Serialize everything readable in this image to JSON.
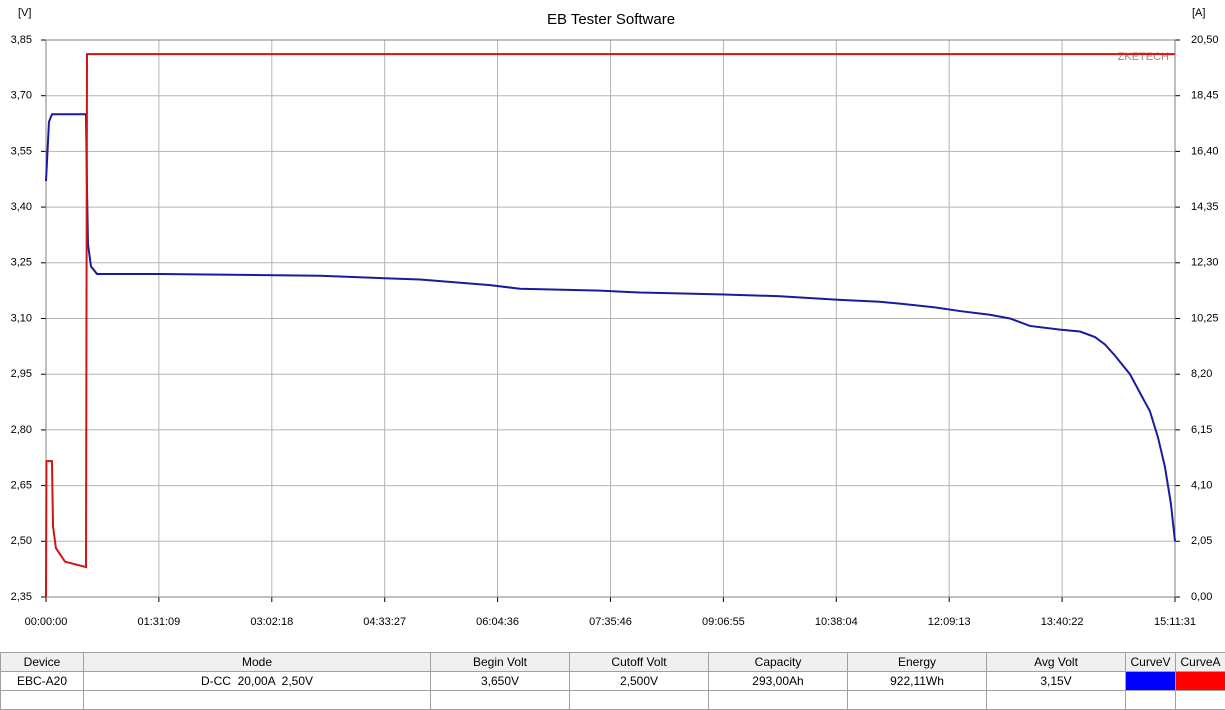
{
  "chart_data": {
    "type": "line",
    "title": "EB Tester Software",
    "y_label": "[V]",
    "y2_label": "[A]",
    "watermark": "ZKETECH",
    "grid": true,
    "xlim": [
      0,
      54691
    ],
    "xticks": [
      {
        "value": 0,
        "label": "00:00:00"
      },
      {
        "value": 5469,
        "label": "01:31:09"
      },
      {
        "value": 10938,
        "label": "03:02:18"
      },
      {
        "value": 16407,
        "label": "04:33:27"
      },
      {
        "value": 21876,
        "label": "06:04:36"
      },
      {
        "value": 27346,
        "label": "07:35:46"
      },
      {
        "value": 32815,
        "label": "09:06:55"
      },
      {
        "value": 38284,
        "label": "10:38:04"
      },
      {
        "value": 43753,
        "label": "12:09:13"
      },
      {
        "value": 49222,
        "label": "13:40:22"
      },
      {
        "value": 54691,
        "label": "15:11:31"
      }
    ],
    "ylim": [
      2.35,
      3.85
    ],
    "yticks": [
      {
        "value": 2.35,
        "label": "2,35"
      },
      {
        "value": 2.5,
        "label": "2,50"
      },
      {
        "value": 2.65,
        "label": "2,65"
      },
      {
        "value": 2.8,
        "label": "2,80"
      },
      {
        "value": 2.95,
        "label": "2,95"
      },
      {
        "value": 3.1,
        "label": "3,10"
      },
      {
        "value": 3.25,
        "label": "3,25"
      },
      {
        "value": 3.4,
        "label": "3,40"
      },
      {
        "value": 3.55,
        "label": "3,55"
      },
      {
        "value": 3.7,
        "label": "3,70"
      },
      {
        "value": 3.85,
        "label": "3,85"
      }
    ],
    "y2lim": [
      0,
      20.5
    ],
    "y2ticks": [
      {
        "value": 0,
        "label": "0,00"
      },
      {
        "value": 2.05,
        "label": "2,05"
      },
      {
        "value": 4.1,
        "label": "4,10"
      },
      {
        "value": 6.15,
        "label": "6,15"
      },
      {
        "value": 8.2,
        "label": "8,20"
      },
      {
        "value": 10.25,
        "label": "10,25"
      },
      {
        "value": 12.3,
        "label": "12,30"
      },
      {
        "value": 14.35,
        "label": "14,35"
      },
      {
        "value": 16.4,
        "label": "16,40"
      },
      {
        "value": 18.45,
        "label": "18,45"
      },
      {
        "value": 20.5,
        "label": "20,50"
      }
    ],
    "series": [
      {
        "name": "CurveV",
        "color": "#1a1a9e",
        "x": [
          0,
          145,
          291,
          1938,
          1986,
          2034,
          2180,
          2470,
          5522,
          13273,
          18117,
          21507,
          22961,
          26836,
          28773,
          32649,
          35555,
          38461,
          40399,
          41368,
          43063,
          44274,
          45727,
          46696,
          47665,
          49118,
          50087,
          50814,
          51298,
          51783,
          52509,
          52993,
          53478,
          53866,
          54205,
          54496,
          54691
        ],
        "values": [
          3.47,
          3.63,
          3.65,
          3.65,
          3.45,
          3.3,
          3.24,
          3.22,
          3.22,
          3.215,
          3.205,
          3.19,
          3.18,
          3.175,
          3.17,
          3.165,
          3.16,
          3.15,
          3.145,
          3.14,
          3.13,
          3.12,
          3.11,
          3.1,
          3.08,
          3.07,
          3.065,
          3.05,
          3.03,
          3.0,
          2.95,
          2.9,
          2.85,
          2.78,
          2.7,
          2.6,
          2.5
        ]
      },
      {
        "name": "CurveA",
        "color": "#d01414",
        "axis": "y2",
        "x": [
          0,
          20,
          290,
          340,
          480,
          920,
          1938,
          1986,
          54691
        ],
        "values": [
          0,
          5.0,
          5.0,
          2.6,
          1.8,
          1.3,
          1.1,
          19.98,
          19.98
        ]
      }
    ]
  },
  "table": {
    "header": [
      "Device",
      "Mode",
      "Begin Volt",
      "Cutoff Volt",
      "Capacity",
      "Energy",
      "Avg Volt",
      "CurveV",
      "CurveA"
    ],
    "rows": [
      [
        "EBC-A20",
        "D-CC  20,00A  2,50V",
        "3,650V",
        "2,500V",
        "293,00Ah",
        "922,11Wh",
        "3,15V"
      ]
    ],
    "swatches": [
      "#0000ff",
      "#ff0000"
    ]
  }
}
